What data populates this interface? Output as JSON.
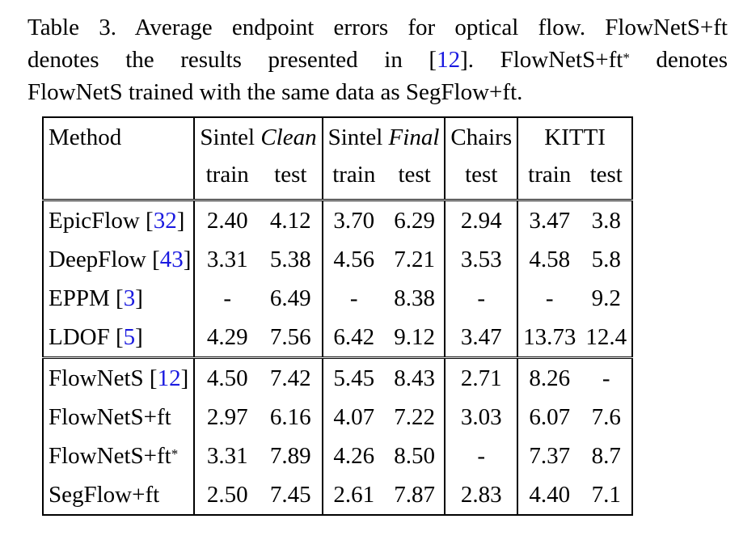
{
  "caption": {
    "line1": [
      "Table 3. Average endpoint errors for optical flow.  FlowNetS+ft"
    ],
    "line2_a": "denotes  the  results  presented  in  [",
    "line2_ref": "12",
    "line2_b": "].   FlowNetS+ft",
    "line2_sup": "*",
    "line2_c": " denotes",
    "line3": "FlowNetS trained with the same data as SegFlow+ft."
  },
  "table": {
    "header": {
      "method": "Method",
      "sintel_clean_a": "Sintel ",
      "sintel_clean_b": "Clean",
      "sintel_final_a": "Sintel ",
      "sintel_final_b": "Final",
      "chairs": "Chairs",
      "kitti": "KITTI",
      "train": "train",
      "test": "test"
    },
    "rows": [
      {
        "name": "EpicFlow ",
        "ref": "32",
        "sup": "",
        "v": [
          "2.40",
          "4.12",
          "3.70",
          "6.29",
          "2.94",
          "3.47",
          "3.8"
        ]
      },
      {
        "name": "DeepFlow ",
        "ref": "43",
        "sup": "",
        "v": [
          "3.31",
          "5.38",
          "4.56",
          "7.21",
          "3.53",
          "4.58",
          "5.8"
        ]
      },
      {
        "name": "EPPM ",
        "ref": "3",
        "sup": "",
        "v": [
          "-",
          "6.49",
          "-",
          "8.38",
          "-",
          "-",
          "9.2"
        ]
      },
      {
        "name": "LDOF ",
        "ref": "5",
        "sup": "",
        "v": [
          "4.29",
          "7.56",
          "6.42",
          "9.12",
          "3.47",
          "13.73",
          "12.4"
        ]
      },
      {
        "name": "FlowNetS ",
        "ref": "12",
        "sup": "",
        "v": [
          "4.50",
          "7.42",
          "5.45",
          "8.43",
          "2.71",
          "8.26",
          "-"
        ]
      },
      {
        "name": "FlowNetS+ft",
        "ref": "",
        "sup": "",
        "v": [
          "2.97",
          "6.16",
          "4.07",
          "7.22",
          "3.03",
          "6.07",
          "7.6"
        ]
      },
      {
        "name": "FlowNetS+ft",
        "ref": "",
        "sup": "*",
        "v": [
          "3.31",
          "7.89",
          "4.26",
          "8.50",
          "-",
          "7.37",
          "8.7"
        ]
      },
      {
        "name": "SegFlow+ft",
        "ref": "",
        "sup": "",
        "v": [
          "2.50",
          "7.45",
          "2.61",
          "7.87",
          "2.83",
          "4.40",
          "7.1"
        ]
      }
    ]
  }
}
